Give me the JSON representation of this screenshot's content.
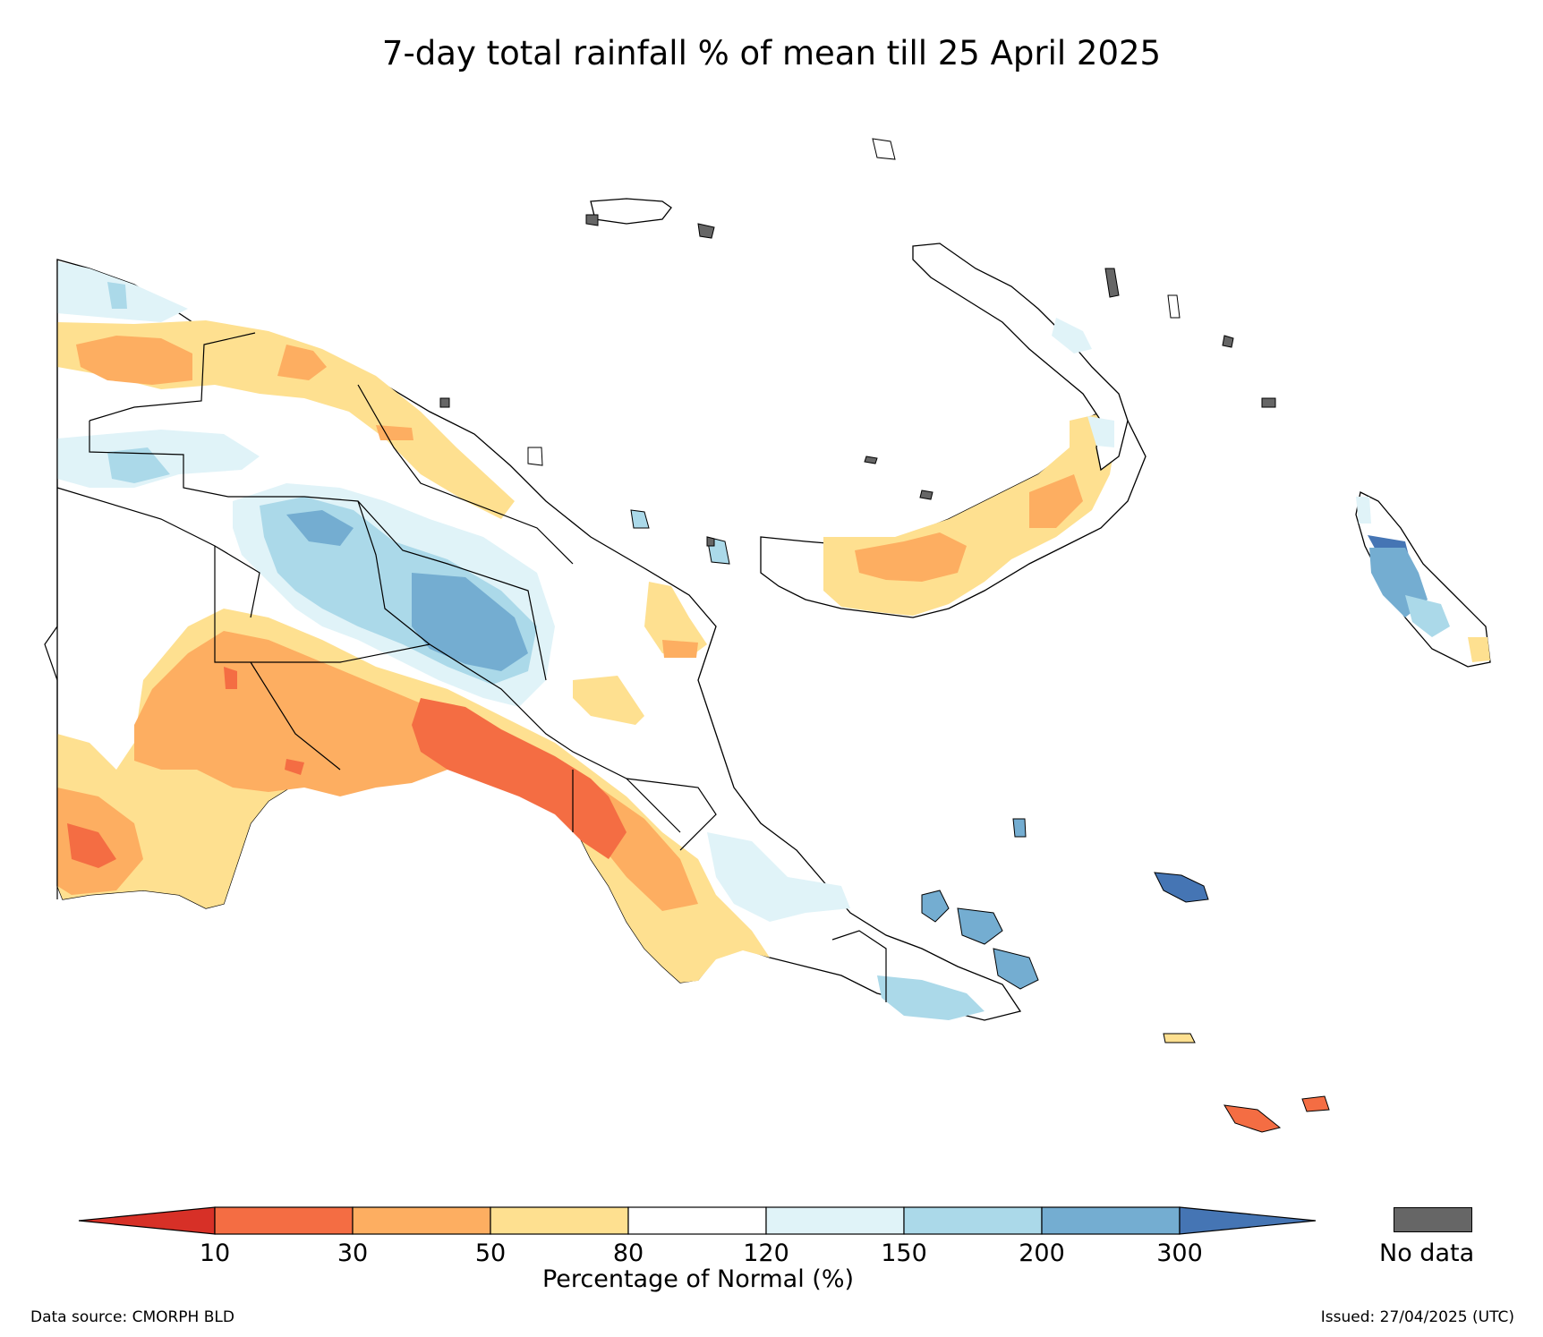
{
  "title": "7-day total rainfall % of mean till 25 April 2025",
  "legend": {
    "label": "Percentage of Normal (%)",
    "ticks": [
      "10",
      "30",
      "50",
      "80",
      "120",
      "150",
      "200",
      "300"
    ],
    "colors": {
      "below_10": "#d73027",
      "10_30": "#f46d43",
      "30_50": "#fdae61",
      "50_80": "#fee090",
      "80_120": "#ffffff",
      "120_150": "#e0f3f8",
      "150_200": "#abd9e9",
      "200_300": "#74add1",
      "above_300": "#4575b4"
    },
    "no_data": {
      "label": "No data",
      "color": "#666666"
    }
  },
  "footer": {
    "data_source": "Data source: CMORPH BLD",
    "issued": "Issued: 27/04/2025 (UTC)"
  }
}
